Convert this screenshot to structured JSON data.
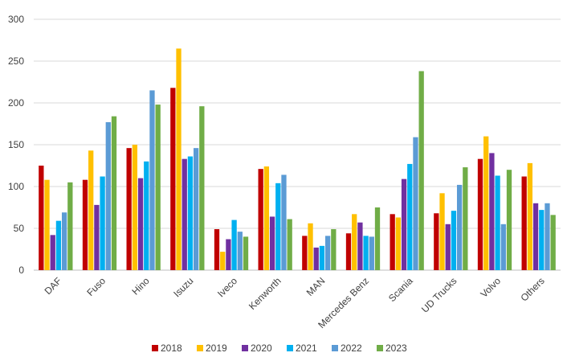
{
  "chart_data": {
    "type": "bar",
    "title": "",
    "xlabel": "",
    "ylabel": "",
    "ylim": [
      0,
      300
    ],
    "yticks": [
      0,
      50,
      100,
      150,
      200,
      250,
      300
    ],
    "grid": true,
    "legend_position": "bottom",
    "categories": [
      "DAF",
      "Fuso",
      "Hino",
      "Isuzu",
      "Iveco",
      "Kenworth",
      "MAN",
      "Mercedes Benz",
      "Scania",
      "UD Trucks",
      "Volvo",
      "Others"
    ],
    "series": [
      {
        "name": "2018",
        "color": "#C00000",
        "values": [
          125,
          108,
          146,
          218,
          49,
          121,
          41,
          44,
          67,
          68,
          133,
          112
        ]
      },
      {
        "name": "2019",
        "color": "#FFC000",
        "values": [
          108,
          143,
          150,
          265,
          22,
          124,
          56,
          67,
          63,
          92,
          160,
          128
        ]
      },
      {
        "name": "2020",
        "color": "#7030A0",
        "values": [
          42,
          78,
          110,
          133,
          37,
          64,
          27,
          57,
          109,
          55,
          140,
          80
        ]
      },
      {
        "name": "2021",
        "color": "#00B0F0",
        "values": [
          59,
          112,
          130,
          136,
          60,
          104,
          29,
          41,
          127,
          71,
          113,
          72
        ]
      },
      {
        "name": "2022",
        "color": "#5B9BD5",
        "values": [
          69,
          177,
          215,
          146,
          46,
          114,
          41,
          40,
          159,
          102,
          55,
          80
        ]
      },
      {
        "name": "2023",
        "color": "#70AD47",
        "values": [
          105,
          184,
          198,
          196,
          40,
          61,
          49,
          75,
          238,
          123,
          120,
          66
        ]
      }
    ]
  }
}
